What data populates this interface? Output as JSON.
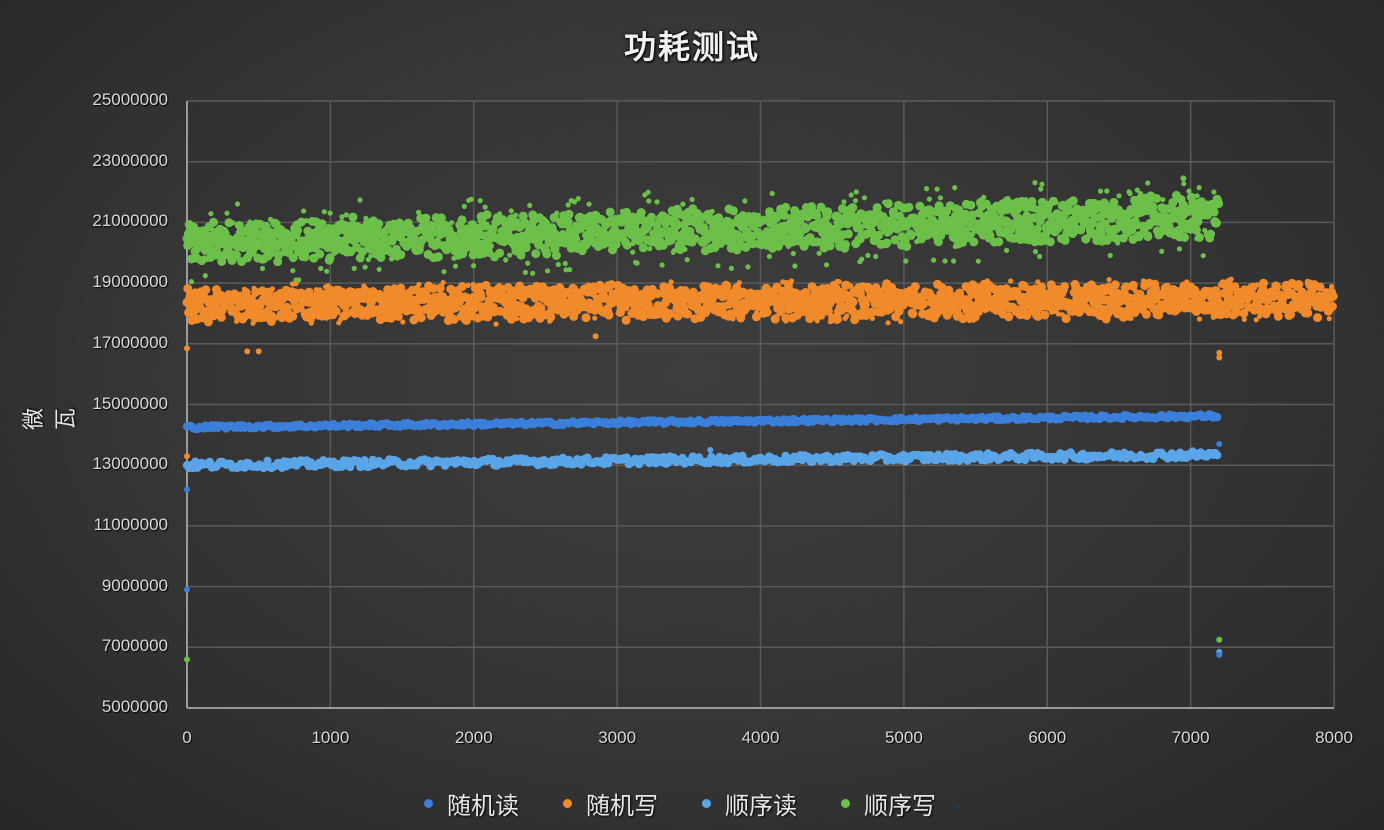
{
  "chart_data": {
    "type": "scatter",
    "title": "功耗测试",
    "xlabel": "",
    "ylabel": "微瓦",
    "xlim": [
      0,
      8000
    ],
    "ylim": [
      5000000,
      25000000
    ],
    "x_ticks": [
      "0",
      "1000",
      "2000",
      "3000",
      "4000",
      "5000",
      "6000",
      "7000",
      "8000"
    ],
    "y_ticks": [
      "25000000",
      "23000000",
      "21000000",
      "19000000",
      "17000000",
      "15000000",
      "13000000",
      "11000000",
      "9000000",
      "7000000",
      "5000000"
    ],
    "grid": true,
    "legend_position": "bottom",
    "series": [
      {
        "name": "随机读",
        "color": "#3a7fd9",
        "x_range": [
          0,
          7200
        ],
        "center_start": 14250000,
        "center_end": 14620000,
        "spread": 60000,
        "scatter": 0,
        "outliers": [
          [
            0,
            8900000
          ],
          [
            0,
            12200000
          ],
          [
            7200,
            6750000
          ],
          [
            7200,
            13700000
          ]
        ]
      },
      {
        "name": "随机写",
        "color": "#f08a2a",
        "x_range": [
          0,
          8000
        ],
        "center_start": 18300000,
        "center_end": 18450000,
        "spread": 450000,
        "scatter": 700000,
        "outliers": [
          [
            0,
            16850000
          ],
          [
            0,
            13300000
          ],
          [
            420,
            16750000
          ],
          [
            500,
            16750000
          ],
          [
            2850,
            17250000
          ],
          [
            7200,
            16550000
          ],
          [
            7200,
            16700000
          ]
        ]
      },
      {
        "name": "顺序读",
        "color": "#5aa4e8",
        "x_range": [
          0,
          7200
        ],
        "center_start": 13000000,
        "center_end": 13350000,
        "spread": 120000,
        "scatter": 0,
        "outliers": [
          [
            3650,
            13500000
          ],
          [
            7200,
            6850000
          ]
        ]
      },
      {
        "name": "顺序写",
        "color": "#6cc04a",
        "x_range": [
          0,
          7200
        ],
        "center_start": 20300000,
        "center_end": 21200000,
        "spread": 550000,
        "scatter": 1300000,
        "outliers": [
          [
            0,
            6600000
          ],
          [
            7200,
            7250000
          ],
          [
            6950,
            22450000
          ]
        ]
      }
    ]
  },
  "legend": {
    "items": [
      {
        "label": "随机读",
        "color": "#3a7fd9"
      },
      {
        "label": "随机写",
        "color": "#f08a2a"
      },
      {
        "label": "顺序读",
        "color": "#5aa4e8"
      },
      {
        "label": "顺序写",
        "color": "#6cc04a"
      }
    ]
  }
}
